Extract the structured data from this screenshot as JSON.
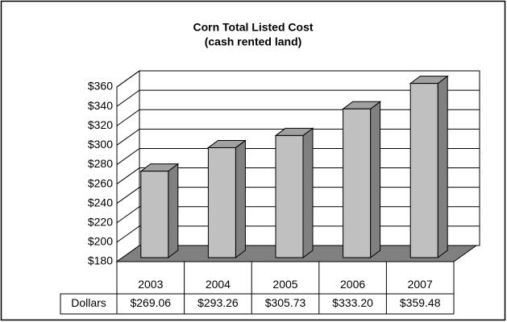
{
  "chart_data": {
    "type": "bar3d",
    "title": "Corn Total Listed Cost",
    "subtitle": "(cash rented land)",
    "categories": [
      "2003",
      "2004",
      "2005",
      "2006",
      "2007"
    ],
    "series": [
      {
        "name": "Dollars",
        "color": "#c0c0c0",
        "values": [
          269.06,
          293.26,
          305.73,
          333.2,
          359.48
        ],
        "value_labels": [
          "$269.06",
          "$293.26",
          "$305.73",
          "$333.20",
          "$359.48"
        ]
      }
    ],
    "ylim": [
      180,
      360
    ],
    "yticks": [
      {
        "value": 180,
        "label": "$180"
      },
      {
        "value": 200,
        "label": "$200"
      },
      {
        "value": 220,
        "label": "$220"
      },
      {
        "value": 240,
        "label": "$240"
      },
      {
        "value": 260,
        "label": "$260"
      },
      {
        "value": 280,
        "label": "$280"
      },
      {
        "value": 300,
        "label": "$300"
      },
      {
        "value": 320,
        "label": "$320"
      },
      {
        "value": 340,
        "label": "$340"
      },
      {
        "value": 360,
        "label": "$360"
      }
    ],
    "grid": true,
    "data_table": true
  }
}
